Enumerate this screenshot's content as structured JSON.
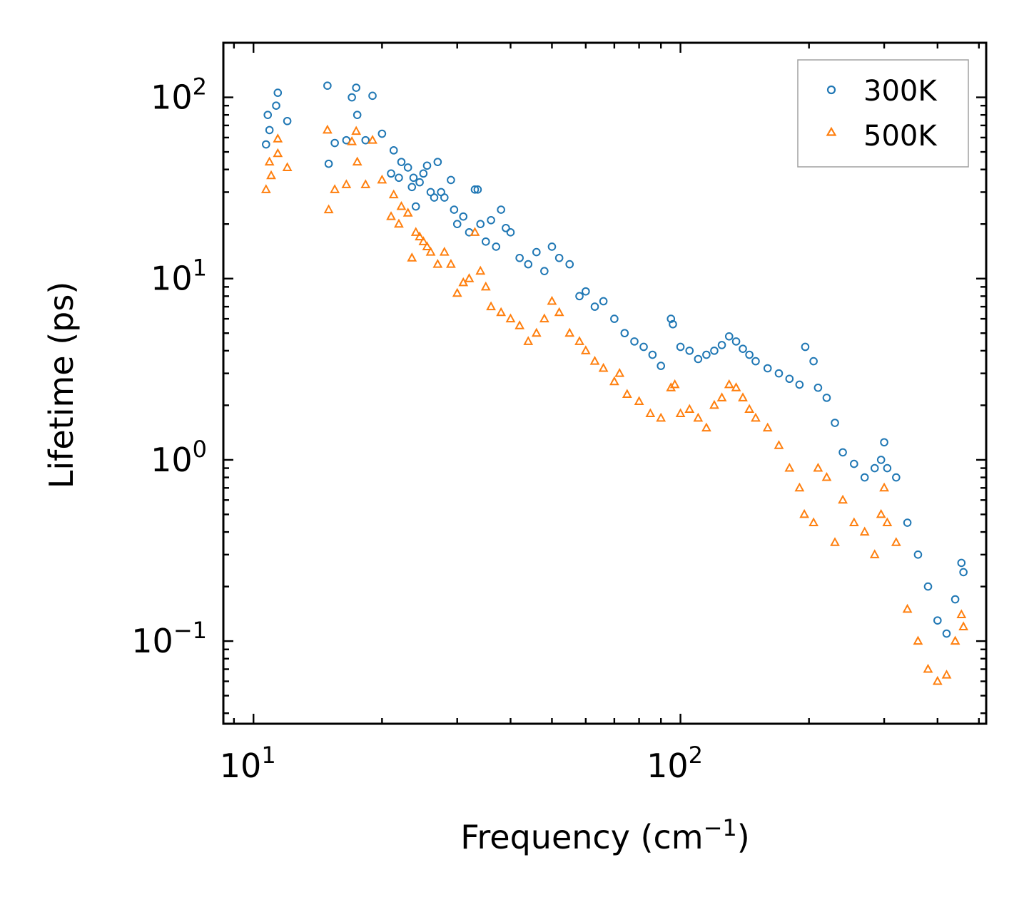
{
  "chart_data": {
    "type": "scatter",
    "xscale": "log",
    "yscale": "log",
    "xlim": [
      8.5,
      520
    ],
    "ylim": [
      0.035,
      200
    ],
    "xlabel": "Frequency (cm",
    "xlabel_exp": "−1",
    "xlabel_close": ")",
    "ylabel": "Lifetime (ps)",
    "x_ticks": [
      {
        "value": 10,
        "base": "10",
        "exp": "1"
      },
      {
        "value": 100,
        "base": "10",
        "exp": "2"
      }
    ],
    "y_ticks": [
      {
        "value": 0.1,
        "base": "10",
        "exp": "−1"
      },
      {
        "value": 1,
        "base": "10",
        "exp": "0"
      },
      {
        "value": 10,
        "base": "10",
        "exp": "1"
      },
      {
        "value": 100,
        "base": "10",
        "exp": "2"
      }
    ],
    "legend_position": "top-right",
    "series": [
      {
        "name": "300K",
        "marker": "circle",
        "color": "#1f77b4",
        "points": [
          [
            10.7,
            55
          ],
          [
            10.8,
            80
          ],
          [
            10.9,
            66
          ],
          [
            11.3,
            90
          ],
          [
            11.4,
            106
          ],
          [
            12.0,
            74
          ],
          [
            14.9,
            116
          ],
          [
            15.0,
            43
          ],
          [
            15.5,
            56
          ],
          [
            16.5,
            58
          ],
          [
            17.0,
            100
          ],
          [
            17.4,
            113
          ],
          [
            17.5,
            80
          ],
          [
            18.3,
            58
          ],
          [
            19.0,
            102
          ],
          [
            20.0,
            63
          ],
          [
            21.0,
            38
          ],
          [
            21.3,
            51
          ],
          [
            21.9,
            36
          ],
          [
            22.2,
            44
          ],
          [
            23.0,
            41
          ],
          [
            23.5,
            32
          ],
          [
            23.7,
            36
          ],
          [
            24.0,
            25
          ],
          [
            24.5,
            34
          ],
          [
            25.0,
            38
          ],
          [
            25.5,
            42
          ],
          [
            26.0,
            30
          ],
          [
            26.5,
            28
          ],
          [
            27.0,
            44
          ],
          [
            27.5,
            30
          ],
          [
            28.0,
            28
          ],
          [
            29.0,
            35
          ],
          [
            29.5,
            24
          ],
          [
            30.0,
            20
          ],
          [
            31.0,
            22
          ],
          [
            32.0,
            18
          ],
          [
            33.0,
            31
          ],
          [
            33.5,
            31
          ],
          [
            34.0,
            20
          ],
          [
            35.0,
            16
          ],
          [
            36.0,
            21
          ],
          [
            37.0,
            15
          ],
          [
            38.0,
            24
          ],
          [
            39.0,
            19
          ],
          [
            40.0,
            18
          ],
          [
            42.0,
            13
          ],
          [
            44.0,
            12
          ],
          [
            46.0,
            14
          ],
          [
            48.0,
            11
          ],
          [
            50.0,
            15
          ],
          [
            52.0,
            13
          ],
          [
            55.0,
            12
          ],
          [
            58.0,
            8
          ],
          [
            60.0,
            8.5
          ],
          [
            63.0,
            7
          ],
          [
            66.0,
            7.5
          ],
          [
            70.0,
            6
          ],
          [
            74.0,
            5
          ],
          [
            78.0,
            4.5
          ],
          [
            82.0,
            4.2
          ],
          [
            86.0,
            3.8
          ],
          [
            90.0,
            3.3
          ],
          [
            95.0,
            6.0
          ],
          [
            96.0,
            5.6
          ],
          [
            100.0,
            4.2
          ],
          [
            105.0,
            4.0
          ],
          [
            110.0,
            3.6
          ],
          [
            115.0,
            3.8
          ],
          [
            120.0,
            4.0
          ],
          [
            125.0,
            4.3
          ],
          [
            130.0,
            4.8
          ],
          [
            135.0,
            4.5
          ],
          [
            140.0,
            4.1
          ],
          [
            145.0,
            3.8
          ],
          [
            150.0,
            3.5
          ],
          [
            160.0,
            3.2
          ],
          [
            170.0,
            3.0
          ],
          [
            180.0,
            2.8
          ],
          [
            190.0,
            2.6
          ],
          [
            196.0,
            4.2
          ],
          [
            205.0,
            3.5
          ],
          [
            210.0,
            2.5
          ],
          [
            220.0,
            2.2
          ],
          [
            230.0,
            1.6
          ],
          [
            240.0,
            1.1
          ],
          [
            255.0,
            0.95
          ],
          [
            270.0,
            0.8
          ],
          [
            285.0,
            0.9
          ],
          [
            295.0,
            1.0
          ],
          [
            300.0,
            1.25
          ],
          [
            305.0,
            0.9
          ],
          [
            320.0,
            0.8
          ],
          [
            340.0,
            0.45
          ],
          [
            360.0,
            0.3
          ],
          [
            380.0,
            0.2
          ],
          [
            400.0,
            0.13
          ],
          [
            420.0,
            0.11
          ],
          [
            440.0,
            0.17
          ],
          [
            455.0,
            0.27
          ],
          [
            460.0,
            0.24
          ]
        ]
      },
      {
        "name": "500K",
        "marker": "triangle",
        "color": "#ff7f0e",
        "points": [
          [
            10.7,
            31
          ],
          [
            10.9,
            44
          ],
          [
            11.0,
            37
          ],
          [
            11.4,
            59
          ],
          [
            11.4,
            49
          ],
          [
            12.0,
            41
          ],
          [
            14.9,
            66
          ],
          [
            15.0,
            24
          ],
          [
            15.5,
            31
          ],
          [
            16.5,
            33
          ],
          [
            17.0,
            57
          ],
          [
            17.4,
            65
          ],
          [
            17.5,
            44
          ],
          [
            18.3,
            33
          ],
          [
            19.0,
            58
          ],
          [
            20.0,
            35
          ],
          [
            21.0,
            22
          ],
          [
            21.3,
            29
          ],
          [
            21.9,
            20
          ],
          [
            22.2,
            25
          ],
          [
            23.0,
            23
          ],
          [
            23.5,
            13
          ],
          [
            24.0,
            18
          ],
          [
            24.5,
            17
          ],
          [
            25.0,
            16
          ],
          [
            25.5,
            15
          ],
          [
            26.0,
            14
          ],
          [
            27.0,
            12
          ],
          [
            28.0,
            14
          ],
          [
            29.0,
            12
          ],
          [
            30.0,
            8.3
          ],
          [
            31.0,
            9.5
          ],
          [
            32.0,
            10
          ],
          [
            33.0,
            18
          ],
          [
            34.0,
            11
          ],
          [
            35.0,
            9
          ],
          [
            36.0,
            7
          ],
          [
            38.0,
            6.5
          ],
          [
            40.0,
            6
          ],
          [
            42.0,
            5.5
          ],
          [
            44.0,
            4.5
          ],
          [
            46.0,
            5
          ],
          [
            48.0,
            6
          ],
          [
            50.0,
            7.5
          ],
          [
            52.0,
            6.5
          ],
          [
            55.0,
            5
          ],
          [
            58.0,
            4.5
          ],
          [
            60.0,
            4
          ],
          [
            63.0,
            3.5
          ],
          [
            66.0,
            3.2
          ],
          [
            70.0,
            2.7
          ],
          [
            72.0,
            3.0
          ],
          [
            75.0,
            2.3
          ],
          [
            80.0,
            2.1
          ],
          [
            85.0,
            1.8
          ],
          [
            90.0,
            1.7
          ],
          [
            95.0,
            2.5
          ],
          [
            97.0,
            2.6
          ],
          [
            100.0,
            1.8
          ],
          [
            105.0,
            1.9
          ],
          [
            110.0,
            1.7
          ],
          [
            115.0,
            1.5
          ],
          [
            120.0,
            2.0
          ],
          [
            125.0,
            2.2
          ],
          [
            130.0,
            2.6
          ],
          [
            135.0,
            2.5
          ],
          [
            140.0,
            2.2
          ],
          [
            145.0,
            1.9
          ],
          [
            150.0,
            1.7
          ],
          [
            160.0,
            1.5
          ],
          [
            170.0,
            1.2
          ],
          [
            180.0,
            0.9
          ],
          [
            190.0,
            0.7
          ],
          [
            195.0,
            0.5
          ],
          [
            205.0,
            0.45
          ],
          [
            210.0,
            0.9
          ],
          [
            220.0,
            0.8
          ],
          [
            230.0,
            0.35
          ],
          [
            240.0,
            0.6
          ],
          [
            255.0,
            0.45
          ],
          [
            270.0,
            0.4
          ],
          [
            285.0,
            0.3
          ],
          [
            295.0,
            0.5
          ],
          [
            300.0,
            0.7
          ],
          [
            305.0,
            0.45
          ],
          [
            320.0,
            0.35
          ],
          [
            340.0,
            0.15
          ],
          [
            360.0,
            0.1
          ],
          [
            380.0,
            0.07
          ],
          [
            400.0,
            0.06
          ],
          [
            420.0,
            0.065
          ],
          [
            440.0,
            0.1
          ],
          [
            455.0,
            0.14
          ],
          [
            460.0,
            0.12
          ]
        ]
      }
    ]
  }
}
